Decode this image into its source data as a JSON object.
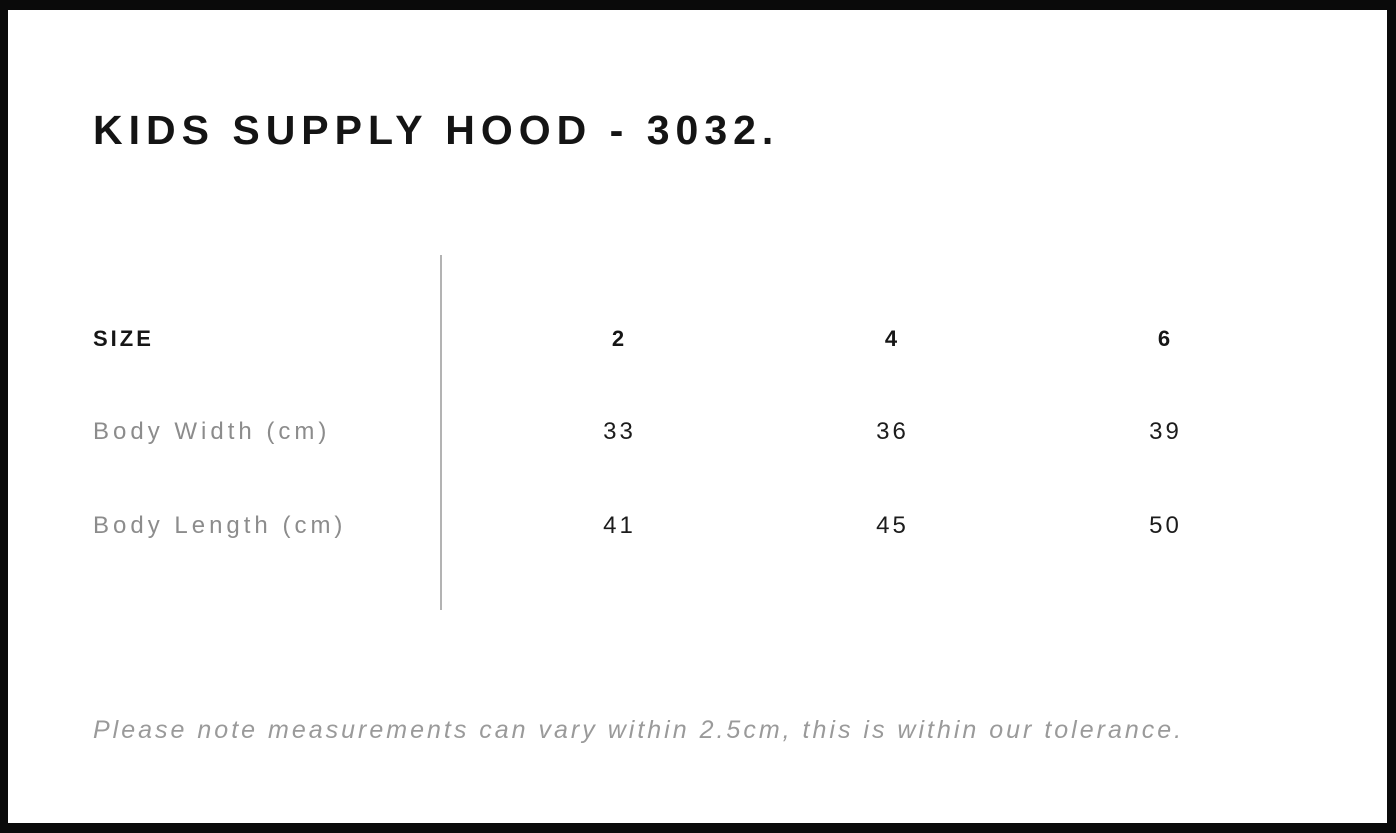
{
  "page": {
    "title": "KIDS SUPPLY HOOD - 3032."
  },
  "size_chart": {
    "type": "table",
    "header_label": "SIZE",
    "sizes": [
      "2",
      "4",
      "6"
    ],
    "rows": [
      {
        "label": "Body Width (cm)",
        "values": [
          "33",
          "36",
          "39"
        ]
      },
      {
        "label": "Body Length (cm)",
        "values": [
          "41",
          "45",
          "50"
        ]
      }
    ],
    "note": "Please note measurements can vary within 2.5cm, this is within our tolerance."
  },
  "colors": {
    "frame_border": "#0a0a0a",
    "background": "#ffffff",
    "title_text": "#141414",
    "header_text": "#161616",
    "label_text": "#8c8c8c",
    "value_text": "#1c1c1c",
    "note_text": "#9a9a9a",
    "divider": "#b3b3b3"
  }
}
